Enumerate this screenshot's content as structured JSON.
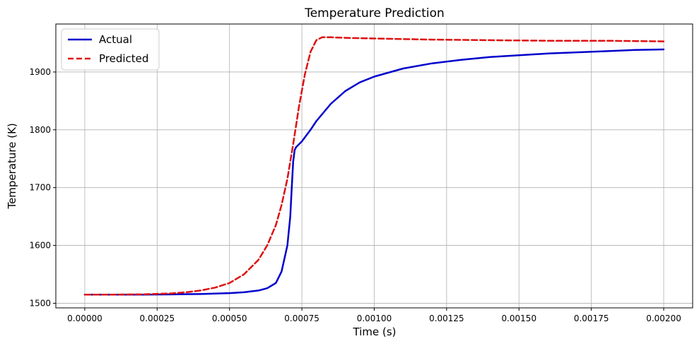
{
  "chart_data": {
    "type": "line",
    "title": "Temperature Prediction",
    "xlabel": "Time (s)",
    "ylabel": "Temperature (K)",
    "xlim": [
      -0.0001,
      0.0021
    ],
    "ylim": [
      1492,
      1983
    ],
    "xticks": [
      0.0,
      0.00025,
      0.0005,
      0.00075,
      0.001,
      0.00125,
      0.0015,
      0.00175,
      0.002
    ],
    "xtick_labels": [
      "0.00000",
      "0.00025",
      "0.00050",
      "0.00075",
      "0.00100",
      "0.00125",
      "0.00150",
      "0.00175",
      "0.00200"
    ],
    "yticks": [
      1500,
      1600,
      1700,
      1800,
      1900
    ],
    "ytick_labels": [
      "1500",
      "1600",
      "1700",
      "1800",
      "1900"
    ],
    "grid": true,
    "legend": "top-left",
    "series": [
      {
        "name": "Actual",
        "color": "#0000cc",
        "style": "solid",
        "x": [
          0.0,
          0.0001,
          0.0002,
          0.0003,
          0.0004,
          0.0005,
          0.00055,
          0.0006,
          0.00063,
          0.00066,
          0.00068,
          0.0007,
          0.00071,
          0.000715,
          0.00072,
          0.000725,
          0.00073,
          0.00075,
          0.00078,
          0.0008,
          0.00085,
          0.0009,
          0.00095,
          0.001,
          0.0011,
          0.0012,
          0.0013,
          0.0014,
          0.0015,
          0.0016,
          0.0017,
          0.0018,
          0.0019,
          0.002
        ],
        "y": [
          1515,
          1515,
          1515,
          1515.3,
          1516,
          1517.5,
          1519,
          1522,
          1526,
          1535,
          1555,
          1600,
          1650,
          1700,
          1745,
          1765,
          1770,
          1780,
          1800,
          1815,
          1845,
          1867,
          1882,
          1892,
          1906,
          1915,
          1921,
          1926,
          1929,
          1932,
          1934,
          1936,
          1938,
          1939
        ]
      },
      {
        "name": "Predicted",
        "color": "#dd1111",
        "style": "dashed",
        "x": [
          0.0,
          0.0001,
          0.0002,
          0.0003,
          0.00035,
          0.0004,
          0.00045,
          0.0005,
          0.00055,
          0.0006,
          0.00063,
          0.00066,
          0.00068,
          0.0007,
          0.00072,
          0.00074,
          0.00076,
          0.00078,
          0.0008,
          0.00082,
          0.00085,
          0.0009,
          0.001,
          0.0012,
          0.0014,
          0.0016,
          0.0018,
          0.002
        ],
        "y": [
          1515,
          1515,
          1515.5,
          1517,
          1519,
          1522,
          1527,
          1535,
          1550,
          1575,
          1600,
          1635,
          1670,
          1715,
          1775,
          1840,
          1895,
          1935,
          1955,
          1960,
          1960,
          1959,
          1958,
          1956,
          1955,
          1954,
          1954,
          1953
        ]
      }
    ]
  }
}
